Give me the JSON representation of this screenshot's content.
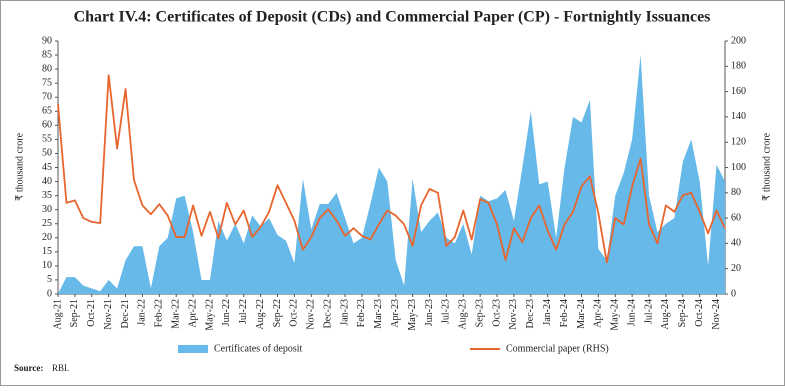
{
  "chart_data": {
    "type": "combo",
    "title": "Chart IV.4: Certificates of Deposit (CDs) and Commercial Paper (CP) - Fortnightly Issuances",
    "y_label": "₹ thousand crore",
    "y2_label": "₹ thousand crore",
    "categories": [
      "Aug-21",
      null,
      "Sep-21",
      null,
      "Oct-21",
      null,
      "Nov-21",
      null,
      "Dec-21",
      null,
      "Jan-22",
      null,
      "Feb-22",
      null,
      "Mar-22",
      null,
      "Apr-22",
      null,
      "May-22",
      null,
      "Jun-22",
      null,
      "Jul-22",
      null,
      "Aug-22",
      null,
      "Sep-22",
      null,
      "Oct-22",
      null,
      "Nov-22",
      null,
      "Dec-22",
      null,
      "Jan-23",
      null,
      "Feb-23",
      null,
      "Mar-23",
      null,
      "Apr-23",
      null,
      "May-23",
      null,
      "Jun-23",
      null,
      "Jul-23",
      null,
      "Aug-23",
      null,
      "Sep-23",
      null,
      "Oct-23",
      null,
      "Nov-23",
      null,
      "Dec-23",
      null,
      "Jan-24",
      null,
      "Feb-24",
      null,
      "Mar-24",
      null,
      "Apr-24",
      null,
      "May-24",
      null,
      "Jun-24",
      null,
      "Jul-24",
      null,
      "Aug-24",
      null,
      "Sep-24",
      null,
      "Oct-24",
      null,
      "Nov-24",
      null
    ],
    "series": [
      {
        "name": "Certificates of deposit",
        "type": "area",
        "color": "#66b9e8",
        "values": [
          0,
          6,
          6,
          3,
          2,
          1,
          5,
          2,
          12,
          17,
          17,
          2,
          17,
          20,
          34,
          35,
          22,
          5,
          5,
          26,
          19,
          25,
          18,
          28,
          24,
          27,
          21,
          19,
          11,
          41,
          23,
          32,
          32,
          36,
          27,
          18,
          20,
          32,
          45,
          40,
          12,
          3,
          41,
          22,
          26,
          29,
          20,
          18,
          25,
          14,
          35,
          33,
          34,
          37,
          26,
          45,
          65,
          39,
          40,
          20,
          45,
          63,
          61,
          69,
          16,
          12,
          35,
          43,
          55,
          85,
          35,
          22,
          25,
          27,
          47,
          55,
          40,
          10,
          46,
          40
        ]
      },
      {
        "name": "Commercial paper (RHS)",
        "type": "line",
        "axis": "y2",
        "color": "#e8652e",
        "values": [
          150,
          72,
          74,
          60,
          57,
          56,
          173,
          115,
          162,
          90,
          70,
          63,
          71,
          62,
          45,
          45,
          70,
          46,
          65,
          44,
          72,
          55,
          66,
          45,
          53,
          65,
          86,
          72,
          58,
          35,
          45,
          60,
          67,
          58,
          46,
          52,
          46,
          43,
          55,
          66,
          62,
          55,
          38,
          70,
          83,
          80,
          38,
          45,
          66,
          43,
          75,
          72,
          55,
          27,
          52,
          41,
          60,
          70,
          50,
          35,
          55,
          65,
          85,
          93,
          64,
          25,
          60,
          55,
          85,
          107,
          55,
          40,
          70,
          65,
          78,
          80,
          65,
          48,
          66,
          52
        ]
      }
    ],
    "ylim": [
      0,
      90
    ],
    "yticks": [
      0,
      5,
      10,
      15,
      20,
      25,
      30,
      35,
      40,
      45,
      50,
      55,
      60,
      65,
      70,
      75,
      80,
      85,
      90
    ],
    "y2lim": [
      0,
      200
    ],
    "y2ticks": [
      0,
      20,
      40,
      60,
      80,
      100,
      120,
      140,
      160,
      180,
      200
    ],
    "source_label": "Source:",
    "source": "RBI."
  }
}
